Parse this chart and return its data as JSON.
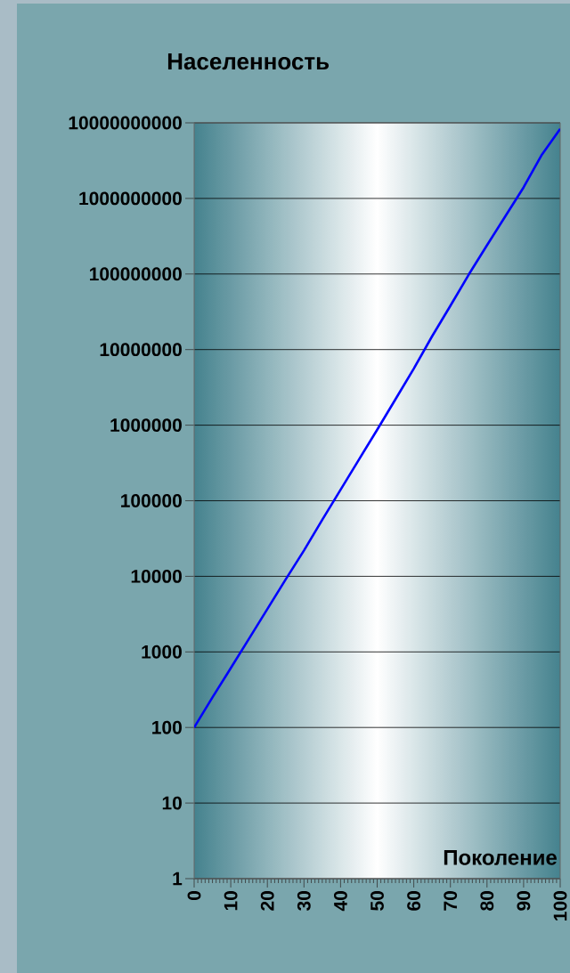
{
  "chart_data": {
    "type": "line",
    "title": "Населенность",
    "xlabel": "Поколение",
    "x": [
      0,
      5,
      10,
      15,
      20,
      25,
      30,
      35,
      40,
      45,
      50,
      55,
      60,
      65,
      70,
      75,
      80,
      85,
      90,
      95,
      100
    ],
    "values": [
      100,
      250,
      610,
      1500,
      3700,
      9100,
      22000,
      56000,
      140000,
      350000,
      870000,
      2200000,
      5600000,
      15000000,
      38000000,
      98000000,
      240000000,
      580000000,
      1400000000,
      3800000000,
      8300000000
    ],
    "color": "#0000ff",
    "xlim": [
      0,
      100
    ],
    "ylim": [
      1,
      10000000000
    ],
    "xticks": [
      0,
      10,
      20,
      30,
      40,
      50,
      60,
      70,
      80,
      90,
      100
    ],
    "yticks": [
      1,
      10,
      100,
      1000,
      10000,
      100000,
      1000000,
      10000000,
      100000000,
      1000000000,
      10000000000
    ],
    "log": "y",
    "grid": "y",
    "marker": "none",
    "line_style": "solid"
  }
}
